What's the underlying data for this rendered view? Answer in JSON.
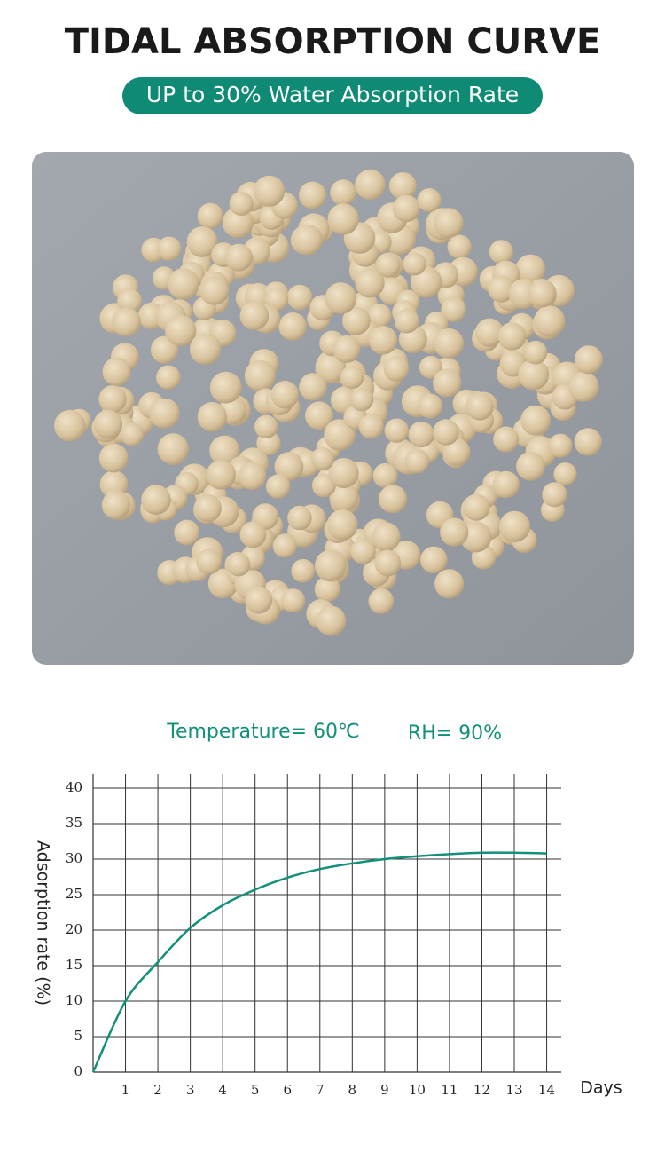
{
  "title": "TIDAL ABSORPTION CURVE",
  "badge": "UP to 30% Water Absorption Rate",
  "chart_data": {
    "type": "line",
    "annotations": [
      "Temperature= 60℃",
      "RH= 90%"
    ],
    "y_label": "Adsorption rate (%)",
    "x_label": "Days",
    "x": [
      0,
      1,
      2,
      3,
      4,
      5,
      6,
      7,
      8,
      9,
      10,
      11,
      12,
      13,
      14
    ],
    "series": [
      {
        "color": "#11907a",
        "values": [
          0,
          10,
          15.5,
          20.3,
          23.5,
          25.7,
          27.4,
          28.6,
          29.4,
          30,
          30.4,
          30.7,
          30.9,
          30.9,
          30.8
        ]
      }
    ],
    "xlim": [
      0,
      14.45
    ],
    "xticks": [
      1,
      2,
      3,
      4,
      5,
      6,
      7,
      8,
      9,
      10,
      11,
      12,
      13,
      14
    ],
    "ylim": [
      0,
      42
    ],
    "yticks": [
      0,
      5,
      10,
      15,
      20,
      25,
      30,
      35,
      40
    ],
    "grid": true
  }
}
